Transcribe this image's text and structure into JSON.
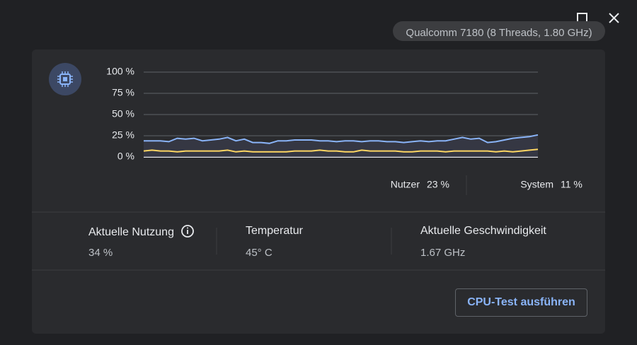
{
  "header": {
    "processor": "Qualcomm 7180 (8 Threads, 1.80 GHz)"
  },
  "chart_data": {
    "type": "line",
    "ylim": [
      0,
      100
    ],
    "yticks": [
      {
        "value": 0,
        "label": "0 %"
      },
      {
        "value": 25,
        "label": "25 %"
      },
      {
        "value": 50,
        "label": "50 %"
      },
      {
        "value": 75,
        "label": "75 %"
      },
      {
        "value": 100,
        "label": "100 %"
      }
    ],
    "grid": true,
    "series": [
      {
        "name": "Nutzer",
        "color": "#8ab4f8",
        "values": [
          19,
          19,
          19,
          18,
          22,
          21,
          22,
          19,
          20,
          21,
          23,
          19,
          21,
          17,
          17,
          16,
          19,
          19,
          20,
          20,
          20,
          19,
          19,
          18,
          19,
          19,
          18,
          19,
          19,
          18,
          18,
          17,
          18,
          19,
          18,
          19,
          19,
          21,
          23,
          21,
          22,
          17,
          18,
          20,
          22,
          23,
          24,
          26
        ]
      },
      {
        "name": "System",
        "color": "#fdd663",
        "values": [
          7,
          8,
          7,
          7,
          6,
          7,
          7,
          7,
          7,
          7,
          8,
          6,
          7,
          6,
          6,
          6,
          6,
          6,
          7,
          7,
          7,
          8,
          7,
          7,
          6,
          6,
          8,
          7,
          7,
          7,
          7,
          6,
          6,
          7,
          7,
          7,
          6,
          7,
          7,
          7,
          7,
          7,
          6,
          7,
          6,
          7,
          8,
          9
        ]
      }
    ]
  },
  "readings": [
    "23 %",
    "11 %"
  ],
  "metrics": [
    {
      "label": "Aktuelle Nutzung",
      "value": "34 %"
    },
    {
      "label": "Temperatur",
      "value": "45° C"
    },
    {
      "label": "Aktuelle Geschwindigkeit",
      "value": "1.67 GHz"
    }
  ],
  "button": "CPU-Test ausführen"
}
